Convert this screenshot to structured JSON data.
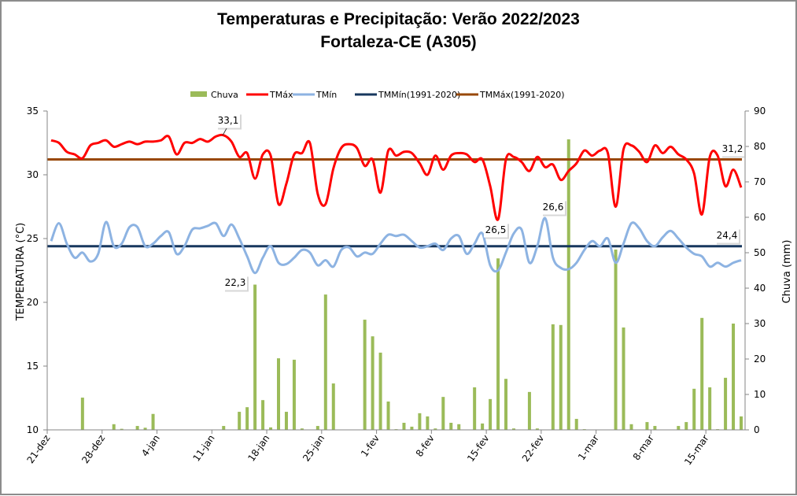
{
  "chart_data": {
    "type": "bar+line",
    "title_line1": "Temperaturas e Precipitação: Verão 2022/2023",
    "title_line2": "Fortaleza-CE (A305)",
    "ylabel_left": "TEMPERATURA (°C)",
    "ylabel_right": "Chuva (mm)",
    "ylim_left": [
      10,
      35
    ],
    "yticks_left": [
      "10",
      "15",
      "20",
      "25",
      "30",
      "35"
    ],
    "ylim_right": [
      0,
      90
    ],
    "yticks_right": [
      "0",
      "10",
      "20",
      "30",
      "40",
      "50",
      "60",
      "70",
      "80",
      "90"
    ],
    "start_date": "21-dez",
    "days": 89,
    "xtick_labels": [
      "21-dez",
      "28-dez",
      "4-jan",
      "11-jan",
      "18-jan",
      "25-jan",
      "1-fev",
      "8-fev",
      "15-fev",
      "22-fev",
      "1-mar",
      "8-mar",
      "15-mar"
    ],
    "xtick_every_days": 7,
    "grid": false,
    "legend_position": "top",
    "legend": [
      {
        "name": "Chuva",
        "color": "#9bbb59",
        "kind": "bar"
      },
      {
        "name": "TMáx",
        "color": "#ff0000",
        "kind": "line"
      },
      {
        "name": "TMín",
        "color": "#8db3e2",
        "kind": "line"
      },
      {
        "name": "TMMín(1991-2020)",
        "color": "#17375e",
        "kind": "line"
      },
      {
        "name": "TMMáx(1991-2020)",
        "color": "#984807",
        "kind": "line"
      }
    ],
    "series": [
      {
        "name": "Chuva",
        "axis": "right",
        "values": [
          0,
          0,
          0,
          0,
          9.1,
          0,
          0,
          0,
          1.6,
          0.3,
          0,
          1.1,
          0.6,
          4.5,
          0,
          0,
          0,
          0,
          0,
          0,
          0,
          0,
          1.1,
          0,
          5.1,
          6.4,
          41,
          8.4,
          0.7,
          20.2,
          5.1,
          19.8,
          0.4,
          0,
          1.1,
          38.2,
          13.1,
          0,
          0,
          0,
          31.1,
          26.4,
          21.8,
          8.0,
          0.2,
          2.0,
          0.9,
          4.7,
          3.8,
          0.4,
          9.3,
          2.0,
          1.6,
          0,
          12.0,
          1.8,
          8.7,
          48.4,
          14.4,
          0.4,
          0,
          10.7,
          0.4,
          0,
          29.8,
          29.6,
          82.0,
          3.1,
          0.2,
          0,
          0,
          0,
          50.9,
          28.9,
          1.6,
          0,
          2.2,
          1.1,
          0,
          0,
          1.1,
          2.2,
          11.6,
          31.6,
          12.0,
          0.2,
          14.7,
          30.0,
          3.8
        ]
      },
      {
        "name": "TMáx",
        "axis": "left",
        "values": [
          32.7,
          32.5,
          31.8,
          31.6,
          31.3,
          32.3,
          32.5,
          32.7,
          32.2,
          32.4,
          32.6,
          32.4,
          32.6,
          32.6,
          32.7,
          33.0,
          31.6,
          32.5,
          32.5,
          32.8,
          32.6,
          33.0,
          33.1,
          32.6,
          31.4,
          31.7,
          29.7,
          31.6,
          31.5,
          27.7,
          29.3,
          31.6,
          31.7,
          32.5,
          28.5,
          27.7,
          30.5,
          32.1,
          32.4,
          32.1,
          30.7,
          31.2,
          28.6,
          31.9,
          31.5,
          31.8,
          31.7,
          30.9,
          30.0,
          31.5,
          30.4,
          31.5,
          31.7,
          31.6,
          31.0,
          31.2,
          29.1,
          26.5,
          31.2,
          31.4,
          31.0,
          30.3,
          31.4,
          30.6,
          30.8,
          29.6,
          30.3,
          30.9,
          31.9,
          31.5,
          31.9,
          31.7,
          27.5,
          32.0,
          32.3,
          31.8,
          31.0,
          32.3,
          31.7,
          32.2,
          31.6,
          31.2,
          30.1,
          26.9,
          31.4,
          31.5,
          29.1,
          30.4,
          29.0
        ]
      },
      {
        "name": "TMín",
        "axis": "left",
        "values": [
          24.8,
          26.2,
          24.6,
          23.5,
          23.9,
          23.2,
          23.8,
          26.3,
          24.4,
          24.6,
          25.9,
          25.9,
          24.4,
          24.6,
          25.2,
          25.5,
          23.8,
          24.4,
          25.7,
          25.8,
          26.0,
          26.2,
          25.2,
          26.1,
          25.0,
          23.6,
          22.3,
          23.5,
          24.4,
          23.1,
          23.0,
          23.5,
          24.1,
          23.9,
          22.9,
          23.3,
          22.8,
          24.1,
          24.3,
          23.6,
          23.9,
          23.8,
          24.6,
          25.3,
          25.2,
          25.3,
          24.8,
          24.3,
          24.4,
          24.6,
          24.1,
          25.0,
          25.2,
          23.8,
          24.6,
          25.4,
          22.9,
          22.5,
          23.9,
          25.4,
          25.7,
          23.1,
          24.4,
          26.6,
          23.5,
          22.7,
          22.6,
          23.1,
          24.1,
          24.8,
          24.4,
          25.0,
          23.1,
          24.6,
          26.2,
          25.8,
          24.8,
          24.4,
          25.1,
          25.6,
          25.0,
          24.3,
          23.8,
          23.6,
          22.8,
          23.1,
          22.8,
          23.1,
          23.3
        ]
      },
      {
        "name": "TMMín(1991-2020)",
        "axis": "left",
        "constant": 24.4
      },
      {
        "name": "TMMáx(1991-2020)",
        "axis": "left",
        "constant": 31.2
      }
    ],
    "annotations": [
      {
        "text": "33,1",
        "series": "TMáx",
        "day_index": 22,
        "value": 33.1
      },
      {
        "text": "22,3",
        "series": "TMín",
        "day_index": 26,
        "value": 22.3
      },
      {
        "text": "26,5",
        "series": "TMáx",
        "day_index": 57,
        "value": 26.5
      },
      {
        "text": "26,6",
        "series": "TMín",
        "day_index": 63,
        "value": 26.6
      },
      {
        "text": "31,2",
        "series": "TMMáx(1991-2020)",
        "day_index": 88,
        "value": 31.2
      },
      {
        "text": "24,4",
        "series": "TMMín(1991-2020)",
        "day_index": 88,
        "value": 24.4
      }
    ]
  }
}
